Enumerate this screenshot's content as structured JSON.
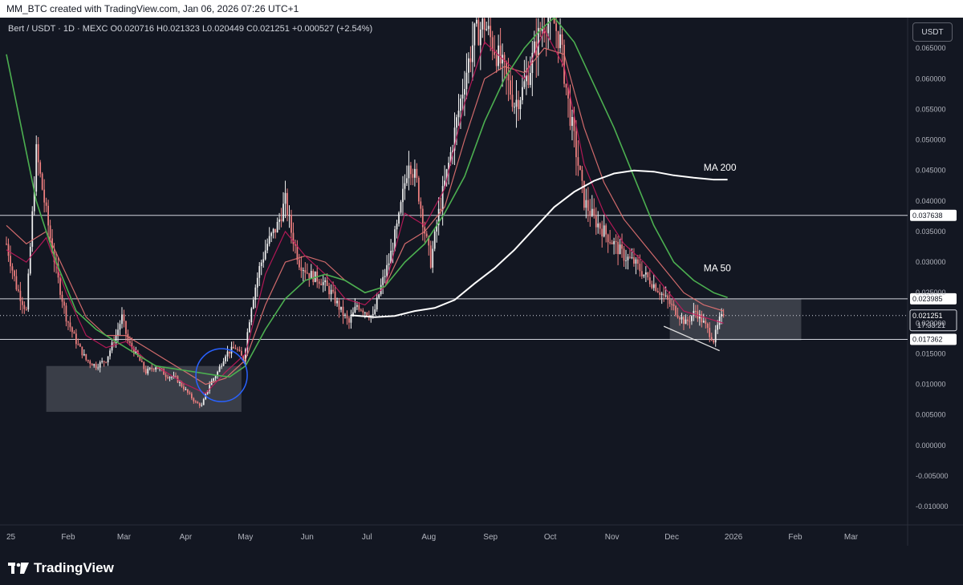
{
  "caption": "MM_BTC created with TradingView.com, Jan 06, 2026 07:26 UTC+1",
  "legend": {
    "symbol": "Bert / USDT · 1D · MEXC",
    "open": "O0.020716",
    "high": "H0.021323",
    "low": "L0.020449",
    "close": "C0.021251",
    "change": "+0.000527 (+2.54%)"
  },
  "unit_button": "USDT",
  "footer": {
    "brand": "TradingView",
    "logo_icon": "tradingview-logo-icon"
  },
  "colors": {
    "background": "#131722",
    "grid": "#1c2030",
    "axis_text": "#b2b5be",
    "candle_up": "#f0f0f0",
    "candle_down": "#f08080",
    "ma50": "#4caf50",
    "ma200": "#ffffff",
    "ema_fast": "#c2185b",
    "ema_slow": "#e57373",
    "circle": "#2962ff",
    "zone": "#6b6e78"
  },
  "chart_data": {
    "type": "candlestick",
    "symbol": "Bert / USDT",
    "timeframe": "1D",
    "exchange": "MEXC",
    "ylim": [
      -0.013,
      0.07
    ],
    "y_ticks": [
      "0.065000",
      "0.060000",
      "0.055000",
      "0.050000",
      "0.045000",
      "0.040000",
      "0.035000",
      "0.030000",
      "0.025000",
      "0.020000",
      "0.015000",
      "0.010000",
      "0.005000",
      "0.000000",
      "-0.005000",
      "-0.010000"
    ],
    "x_ticks": [
      "25",
      "Feb",
      "Mar",
      "Apr",
      "May",
      "Jun",
      "Jul",
      "Aug",
      "Sep",
      "Oct",
      "Nov",
      "Dec",
      "2026",
      "Feb",
      "Mar"
    ],
    "x_tick_days": [
      0,
      31,
      59,
      90,
      120,
      151,
      181,
      212,
      243,
      273,
      304,
      334,
      365,
      396,
      424
    ],
    "xlim_days": [
      0,
      452
    ],
    "grid": false,
    "horizontal_levels": [
      {
        "price": 0.037638,
        "label": "0.037638"
      },
      {
        "price": 0.023985,
        "label": "0.023985"
      },
      {
        "price": 0.017362,
        "label": "0.017362"
      }
    ],
    "last_price": {
      "price": 0.021251,
      "label": "0.021251",
      "countdown": "17:33:21"
    },
    "annotations": [
      {
        "type": "label",
        "text": "MA 200",
        "day": 350,
        "price": 0.0455
      },
      {
        "type": "label",
        "text": "MA 50",
        "day": 350,
        "price": 0.029
      },
      {
        "type": "zone",
        "day_from": 20,
        "day_to": 118,
        "price_from": 0.0055,
        "price_to": 0.013
      },
      {
        "type": "zone",
        "day_from": 333,
        "day_to": 399,
        "price_from": 0.0172,
        "price_to": 0.024
      },
      {
        "type": "circle",
        "day": 108,
        "price": 0.0115
      },
      {
        "type": "trendline",
        "day_from": 330,
        "price_from": 0.0195,
        "day_to": 358,
        "price_to": 0.0155
      }
    ],
    "price_path": [
      [
        0,
        0.033
      ],
      [
        5,
        0.026
      ],
      [
        10,
        0.022
      ],
      [
        15,
        0.048
      ],
      [
        19,
        0.04
      ],
      [
        22,
        0.034
      ],
      [
        26,
        0.027
      ],
      [
        30,
        0.021
      ],
      [
        35,
        0.017
      ],
      [
        40,
        0.014
      ],
      [
        45,
        0.013
      ],
      [
        50,
        0.014
      ],
      [
        55,
        0.018
      ],
      [
        58,
        0.021
      ],
      [
        61,
        0.017
      ],
      [
        65,
        0.015
      ],
      [
        70,
        0.012
      ],
      [
        75,
        0.013
      ],
      [
        80,
        0.0115
      ],
      [
        85,
        0.011
      ],
      [
        90,
        0.009
      ],
      [
        95,
        0.007
      ],
      [
        98,
        0.0065
      ],
      [
        102,
        0.01
      ],
      [
        106,
        0.012
      ],
      [
        110,
        0.015
      ],
      [
        115,
        0.016
      ],
      [
        119,
        0.014
      ],
      [
        123,
        0.023
      ],
      [
        127,
        0.029
      ],
      [
        131,
        0.033
      ],
      [
        136,
        0.036
      ],
      [
        140,
        0.04
      ],
      [
        143,
        0.035
      ],
      [
        147,
        0.03
      ],
      [
        152,
        0.028
      ],
      [
        158,
        0.027
      ],
      [
        163,
        0.025
      ],
      [
        168,
        0.022
      ],
      [
        172,
        0.02
      ],
      [
        176,
        0.023
      ],
      [
        180,
        0.022
      ],
      [
        184,
        0.021
      ],
      [
        188,
        0.026
      ],
      [
        192,
        0.03
      ],
      [
        197,
        0.037
      ],
      [
        202,
        0.047
      ],
      [
        206,
        0.043
      ],
      [
        210,
        0.035
      ],
      [
        213,
        0.03
      ],
      [
        217,
        0.038
      ],
      [
        222,
        0.046
      ],
      [
        226,
        0.053
      ],
      [
        230,
        0.06
      ],
      [
        235,
        0.067
      ],
      [
        240,
        0.069
      ],
      [
        245,
        0.065
      ],
      [
        250,
        0.061
      ],
      [
        255,
        0.056
      ],
      [
        259,
        0.058
      ],
      [
        263,
        0.062
      ],
      [
        268,
        0.068
      ],
      [
        273,
        0.071
      ],
      [
        278,
        0.066
      ],
      [
        282,
        0.056
      ],
      [
        286,
        0.048
      ],
      [
        290,
        0.04
      ],
      [
        295,
        0.037
      ],
      [
        300,
        0.035
      ],
      [
        305,
        0.033
      ],
      [
        310,
        0.031
      ],
      [
        315,
        0.03
      ],
      [
        320,
        0.028
      ],
      [
        326,
        0.026
      ],
      [
        331,
        0.024
      ],
      [
        336,
        0.022
      ],
      [
        341,
        0.02
      ],
      [
        346,
        0.022
      ],
      [
        351,
        0.0195
      ],
      [
        355,
        0.0172
      ],
      [
        358,
        0.0205
      ],
      [
        360,
        0.0212
      ]
    ],
    "ma50_path": [
      [
        0,
        0.064
      ],
      [
        5,
        0.056
      ],
      [
        15,
        0.04
      ],
      [
        25,
        0.03
      ],
      [
        35,
        0.022
      ],
      [
        45,
        0.019
      ],
      [
        55,
        0.017
      ],
      [
        65,
        0.015
      ],
      [
        75,
        0.013
      ],
      [
        85,
        0.0125
      ],
      [
        95,
        0.012
      ],
      [
        105,
        0.0115
      ],
      [
        112,
        0.0112
      ],
      [
        120,
        0.013
      ],
      [
        130,
        0.019
      ],
      [
        140,
        0.024
      ],
      [
        150,
        0.027
      ],
      [
        160,
        0.028
      ],
      [
        170,
        0.027
      ],
      [
        180,
        0.025
      ],
      [
        190,
        0.026
      ],
      [
        200,
        0.03
      ],
      [
        210,
        0.033
      ],
      [
        220,
        0.038
      ],
      [
        230,
        0.044
      ],
      [
        240,
        0.053
      ],
      [
        250,
        0.06
      ],
      [
        260,
        0.065
      ],
      [
        268,
        0.068
      ],
      [
        275,
        0.07
      ],
      [
        285,
        0.066
      ],
      [
        295,
        0.059
      ],
      [
        305,
        0.052
      ],
      [
        315,
        0.044
      ],
      [
        325,
        0.036
      ],
      [
        335,
        0.03
      ],
      [
        345,
        0.027
      ],
      [
        355,
        0.025
      ],
      [
        362,
        0.0242
      ]
    ],
    "ma200_path": [
      [
        173,
        0.0213
      ],
      [
        185,
        0.021
      ],
      [
        195,
        0.0212
      ],
      [
        205,
        0.022
      ],
      [
        215,
        0.0225
      ],
      [
        225,
        0.0238
      ],
      [
        235,
        0.0265
      ],
      [
        245,
        0.029
      ],
      [
        255,
        0.032
      ],
      [
        265,
        0.0355
      ],
      [
        275,
        0.039
      ],
      [
        285,
        0.0415
      ],
      [
        295,
        0.0433
      ],
      [
        305,
        0.0445
      ],
      [
        315,
        0.045
      ],
      [
        325,
        0.0448
      ],
      [
        335,
        0.0442
      ],
      [
        345,
        0.0438
      ],
      [
        355,
        0.0435
      ],
      [
        362,
        0.0435
      ]
    ],
    "ema_fast_path": [
      [
        0,
        0.032
      ],
      [
        10,
        0.03
      ],
      [
        20,
        0.034
      ],
      [
        30,
        0.025
      ],
      [
        40,
        0.018
      ],
      [
        50,
        0.016
      ],
      [
        60,
        0.017
      ],
      [
        70,
        0.014
      ],
      [
        80,
        0.012
      ],
      [
        90,
        0.01
      ],
      [
        100,
        0.0085
      ],
      [
        110,
        0.012
      ],
      [
        120,
        0.015
      ],
      [
        130,
        0.028
      ],
      [
        140,
        0.035
      ],
      [
        150,
        0.031
      ],
      [
        160,
        0.028
      ],
      [
        170,
        0.024
      ],
      [
        180,
        0.023
      ],
      [
        190,
        0.026
      ],
      [
        200,
        0.038
      ],
      [
        210,
        0.036
      ],
      [
        220,
        0.042
      ],
      [
        230,
        0.056
      ],
      [
        240,
        0.066
      ],
      [
        250,
        0.063
      ],
      [
        260,
        0.06
      ],
      [
        270,
        0.068
      ],
      [
        280,
        0.062
      ],
      [
        290,
        0.046
      ],
      [
        300,
        0.038
      ],
      [
        310,
        0.033
      ],
      [
        320,
        0.03
      ],
      [
        330,
        0.026
      ],
      [
        340,
        0.022
      ],
      [
        350,
        0.021
      ],
      [
        360,
        0.02
      ]
    ],
    "ema_slow_path": [
      [
        0,
        0.036
      ],
      [
        10,
        0.033
      ],
      [
        20,
        0.035
      ],
      [
        30,
        0.028
      ],
      [
        40,
        0.021
      ],
      [
        50,
        0.018
      ],
      [
        60,
        0.018
      ],
      [
        70,
        0.016
      ],
      [
        80,
        0.014
      ],
      [
        90,
        0.012
      ],
      [
        100,
        0.01
      ],
      [
        110,
        0.011
      ],
      [
        120,
        0.014
      ],
      [
        130,
        0.023
      ],
      [
        140,
        0.03
      ],
      [
        150,
        0.031
      ],
      [
        160,
        0.03
      ],
      [
        170,
        0.027
      ],
      [
        180,
        0.025
      ],
      [
        190,
        0.026
      ],
      [
        200,
        0.033
      ],
      [
        210,
        0.035
      ],
      [
        220,
        0.039
      ],
      [
        230,
        0.05
      ],
      [
        240,
        0.06
      ],
      [
        250,
        0.062
      ],
      [
        260,
        0.061
      ],
      [
        270,
        0.065
      ],
      [
        280,
        0.064
      ],
      [
        290,
        0.052
      ],
      [
        300,
        0.043
      ],
      [
        310,
        0.037
      ],
      [
        320,
        0.033
      ],
      [
        330,
        0.029
      ],
      [
        340,
        0.025
      ],
      [
        350,
        0.023
      ],
      [
        360,
        0.022
      ]
    ]
  }
}
